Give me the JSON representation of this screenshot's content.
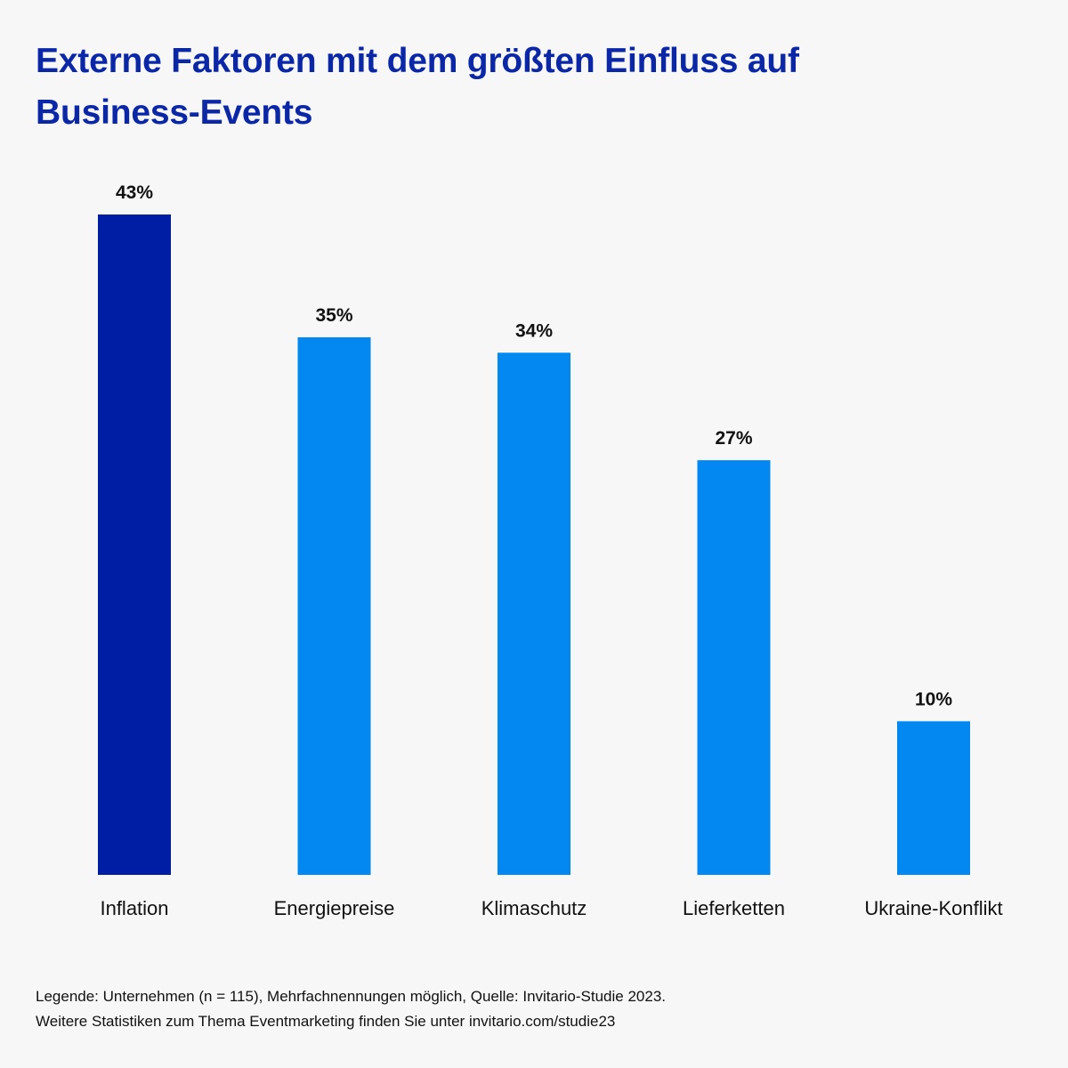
{
  "title_lines": [
    "Externe Faktoren mit dem größten Einfluss auf",
    "Business-Events"
  ],
  "footer_lines": [
    "Legende: Unternehmen (n = 115), Mehrfachnennungen möglich, Quelle: Invitario-Studie 2023.",
    "Weitere Statistiken zum Thema Eventmarketing finden Sie unter invitario.com/studie23"
  ],
  "colors": {
    "title": "#0a27a8",
    "highlight_bar": "#001ea3",
    "bar": "#0288f0",
    "background": "#f7f7f8"
  },
  "chart_data": {
    "type": "bar",
    "categories": [
      "Inflation",
      "Energiepreise",
      "Klimaschutz",
      "Lieferketten",
      "Ukraine-Konflikt"
    ],
    "values": [
      43,
      35,
      34,
      27,
      10
    ],
    "data_labels": [
      "43%",
      "35%",
      "34%",
      "27%",
      "10%"
    ],
    "highlight_index": 0,
    "ylim": [
      0,
      43
    ],
    "grid": false,
    "legend": "none"
  }
}
